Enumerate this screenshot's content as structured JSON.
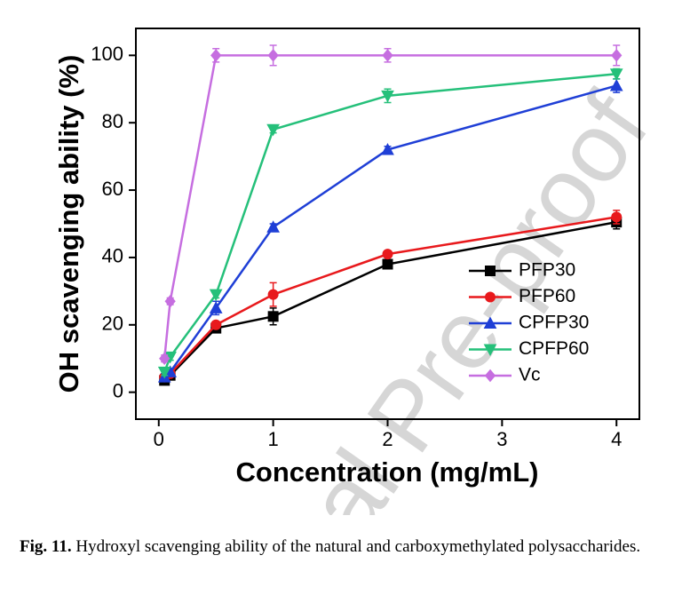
{
  "chart_data": {
    "type": "line",
    "xlabel": "Concentration (mg/mL)",
    "ylabel": "OH scavenging ability (%)",
    "x": [
      0.05,
      0.1,
      0.5,
      1,
      2,
      4
    ],
    "xlim": [
      -0.2,
      4.2
    ],
    "xticks": [
      0,
      1,
      2,
      3,
      4
    ],
    "ylim": [
      -8,
      108
    ],
    "yticks": [
      0,
      20,
      40,
      60,
      80,
      100
    ],
    "legend": "lower-right",
    "series": [
      {
        "name": "PFP30",
        "color": "#000000",
        "marker": "square",
        "values": [
          3.5,
          5,
          19,
          22.5,
          38,
          50.5
        ],
        "errors": [
          1,
          1,
          1,
          2.5,
          1,
          2
        ]
      },
      {
        "name": "PFP60",
        "color": "#e8191c",
        "marker": "circle",
        "values": [
          4.5,
          5.5,
          20,
          29,
          41,
          52
        ],
        "errors": [
          1,
          1,
          1,
          3.5,
          1,
          2
        ]
      },
      {
        "name": "CPFP30",
        "color": "#1f3fd6",
        "marker": "triangle-up",
        "values": [
          4.5,
          6,
          25,
          49,
          72,
          91
        ],
        "errors": [
          1,
          1,
          2,
          1,
          1,
          2
        ]
      },
      {
        "name": "CPFP60",
        "color": "#25c07a",
        "marker": "triangle-down",
        "values": [
          6,
          10.5,
          29,
          78,
          88,
          94.5
        ],
        "errors": [
          1,
          1,
          1,
          1,
          2,
          1.5
        ]
      },
      {
        "name": "Vc",
        "color": "#c66ee0",
        "marker": "diamond",
        "values": [
          10,
          27,
          100,
          100,
          100,
          100
        ],
        "errors": [
          1,
          1,
          2,
          3,
          2,
          3
        ]
      }
    ]
  },
  "watermark": "al Pre-proof",
  "caption": {
    "label": "Fig. 11.",
    "text": "Hydroxyl scavenging ability of the natural and carboxymethylated polysaccharides."
  }
}
